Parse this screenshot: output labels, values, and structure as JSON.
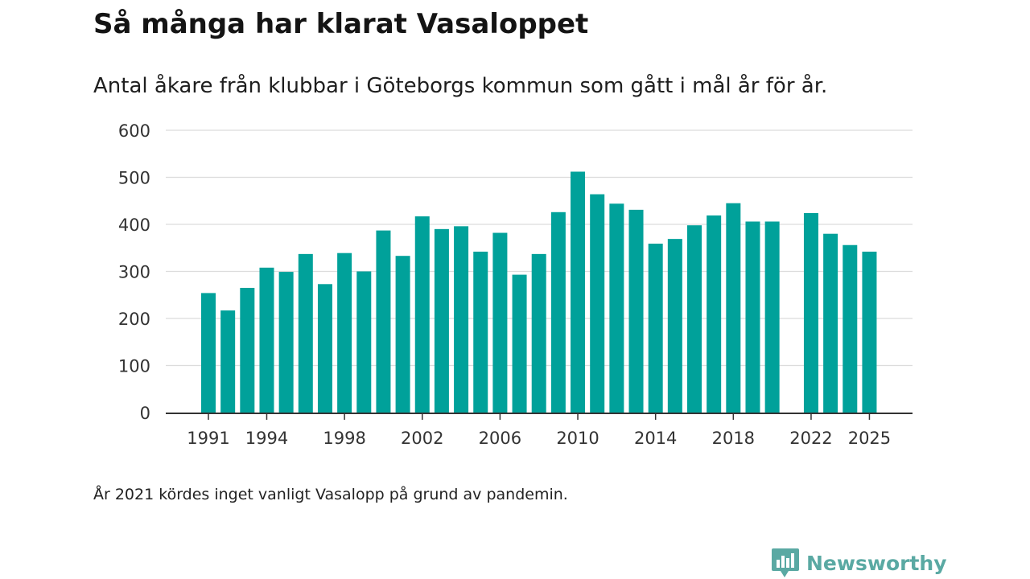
{
  "header": {
    "title": "Så många har klarat Vasaloppet",
    "subtitle": "Antal åkare från klubbar i Göteborgs kommun som gått i mål år för år."
  },
  "footer": {
    "note": "År 2021 kördes inget vanligt Vasalopp på grund av pandemin.",
    "brand": "Newsworthy"
  },
  "colors": {
    "bar": "#00a19a",
    "grid": "#dcdcdc",
    "axis": "#333333",
    "brand": "#5aa9a3"
  },
  "icons": {
    "brand_logo": "newsworthy-chart-bubble-icon"
  },
  "chart_data": {
    "type": "bar",
    "x": [
      1991,
      1992,
      1993,
      1994,
      1995,
      1996,
      1997,
      1998,
      1999,
      2000,
      2001,
      2002,
      2003,
      2004,
      2005,
      2006,
      2007,
      2008,
      2009,
      2010,
      2011,
      2012,
      2013,
      2014,
      2015,
      2016,
      2017,
      2018,
      2019,
      2020,
      2021,
      2022,
      2023,
      2024,
      2025
    ],
    "values": [
      254,
      217,
      265,
      308,
      299,
      337,
      273,
      339,
      300,
      387,
      333,
      417,
      390,
      396,
      342,
      382,
      293,
      337,
      426,
      512,
      464,
      444,
      431,
      359,
      369,
      398,
      419,
      445,
      406,
      406,
      null,
      424,
      380,
      356,
      342
    ],
    "xticks": [
      "1991",
      "1994",
      "1998",
      "2002",
      "2006",
      "2010",
      "2014",
      "2018",
      "2022",
      "2025"
    ],
    "yticks": [
      "0",
      "100",
      "200",
      "300",
      "400",
      "500",
      "600"
    ],
    "ylim": [
      0,
      600
    ],
    "grid": true,
    "title": "Så många har klarat Vasaloppet",
    "xlabel": "",
    "ylabel": ""
  }
}
